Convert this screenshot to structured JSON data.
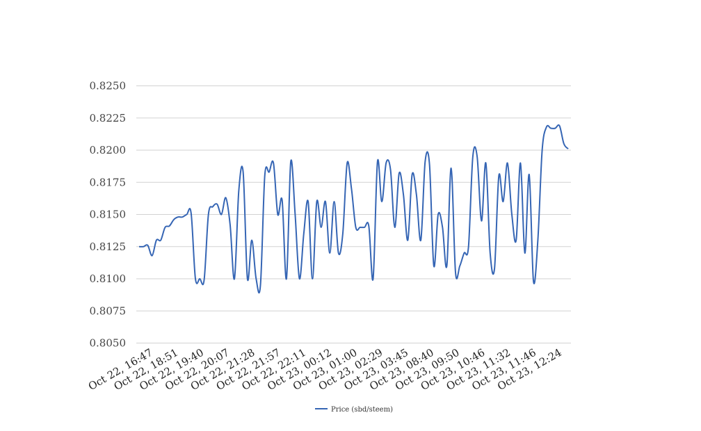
{
  "chart_data": {
    "type": "line",
    "title": "",
    "xlabel": "",
    "ylabel": "",
    "ylim": [
      0.805,
      0.825
    ],
    "y_ticks": [
      "0.8050",
      "0.8075",
      "0.8100",
      "0.8125",
      "0.8150",
      "0.8175",
      "0.8200",
      "0.8225",
      "0.8250"
    ],
    "x_tick_labels": [
      "Oct 22, 16:47",
      "Oct 22, 18:51",
      "Oct 22, 19:40",
      "Oct 22, 20:07",
      "Oct 22, 21:28",
      "Oct 22, 21:57",
      "Oct 22, 22:11",
      "Oct 23, 00:12",
      "Oct 23, 01:00",
      "Oct 23, 02:29",
      "Oct 23, 03:45",
      "Oct 23, 08:40",
      "Oct 23, 09:50",
      "Oct 23, 10:46",
      "Oct 23, 11:32",
      "Oct 23, 11:46",
      "Oct 23, 12:24"
    ],
    "grid": true,
    "legend_position": "bottom-center",
    "series": [
      {
        "name": "Price (sbd/steem)",
        "color": "#3565b4",
        "values": [
          0.8125,
          0.8125,
          0.8126,
          0.8118,
          0.813,
          0.813,
          0.814,
          0.8141,
          0.8146,
          0.8148,
          0.8148,
          0.815,
          0.8151,
          0.81,
          0.81,
          0.8099,
          0.815,
          0.8156,
          0.8158,
          0.815,
          0.8163,
          0.8142,
          0.81,
          0.8168,
          0.8183,
          0.81,
          0.813,
          0.81,
          0.8095,
          0.818,
          0.8183,
          0.819,
          0.815,
          0.8161,
          0.81,
          0.8191,
          0.815,
          0.81,
          0.8135,
          0.816,
          0.81,
          0.816,
          0.814,
          0.816,
          0.812,
          0.816,
          0.812,
          0.8135,
          0.819,
          0.817,
          0.814,
          0.814,
          0.814,
          0.8141,
          0.81,
          0.8191,
          0.816,
          0.819,
          0.8185,
          0.814,
          0.8182,
          0.8165,
          0.813,
          0.8181,
          0.8165,
          0.813,
          0.8191,
          0.8189,
          0.811,
          0.815,
          0.814,
          0.811,
          0.8186,
          0.8105,
          0.811,
          0.812,
          0.8125,
          0.8195,
          0.8195,
          0.8145,
          0.819,
          0.812,
          0.8108,
          0.818,
          0.816,
          0.819,
          0.815,
          0.813,
          0.819,
          0.812,
          0.8181,
          0.8098,
          0.813,
          0.82,
          0.8218,
          0.8217,
          0.8217,
          0.8219,
          0.8205,
          0.8201
        ]
      }
    ]
  }
}
